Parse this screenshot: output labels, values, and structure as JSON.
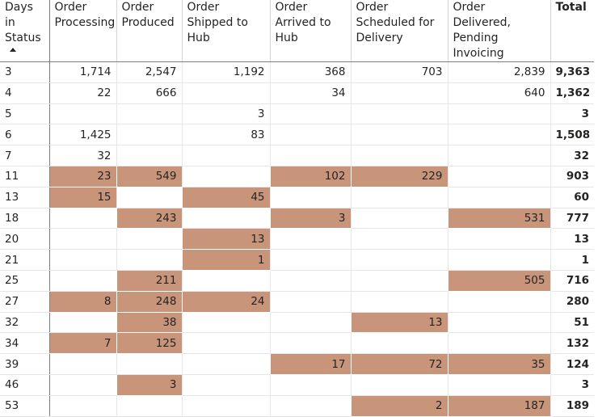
{
  "matrix": {
    "row_header_label": "Days in Status",
    "columns": [
      "Order Processing",
      "Order Produced",
      "Order Shipped to Hub",
      "Order Arrived to Hub",
      "Order Scheduled for Delivery",
      "Order Delivered, Pending Invoicing"
    ],
    "total_label": "Total",
    "highlight_color": "#c8957b",
    "rows": [
      {
        "days": "3",
        "values": [
          "1,714",
          "2,547",
          "1,192",
          "368",
          "703",
          "2,839"
        ],
        "total": "9,363",
        "highlight": [
          false,
          false,
          false,
          false,
          false,
          false
        ]
      },
      {
        "days": "4",
        "values": [
          "22",
          "666",
          "",
          "34",
          "",
          "640"
        ],
        "total": "1,362",
        "highlight": [
          false,
          false,
          false,
          false,
          false,
          false
        ]
      },
      {
        "days": "5",
        "values": [
          "",
          "",
          "3",
          "",
          "",
          ""
        ],
        "total": "3",
        "highlight": [
          false,
          false,
          false,
          false,
          false,
          false
        ]
      },
      {
        "days": "6",
        "values": [
          "1,425",
          "",
          "83",
          "",
          "",
          ""
        ],
        "total": "1,508",
        "highlight": [
          false,
          false,
          false,
          false,
          false,
          false
        ]
      },
      {
        "days": "7",
        "values": [
          "32",
          "",
          "",
          "",
          "",
          ""
        ],
        "total": "32",
        "highlight": [
          false,
          false,
          false,
          false,
          false,
          false
        ]
      },
      {
        "days": "11",
        "values": [
          "23",
          "549",
          "",
          "102",
          "229",
          ""
        ],
        "total": "903",
        "highlight": [
          true,
          true,
          false,
          true,
          true,
          false
        ]
      },
      {
        "days": "13",
        "values": [
          "15",
          "",
          "45",
          "",
          "",
          ""
        ],
        "total": "60",
        "highlight": [
          true,
          false,
          true,
          false,
          false,
          false
        ]
      },
      {
        "days": "18",
        "values": [
          "",
          "243",
          "",
          "3",
          "",
          "531"
        ],
        "total": "777",
        "highlight": [
          false,
          true,
          false,
          true,
          false,
          true
        ]
      },
      {
        "days": "20",
        "values": [
          "",
          "",
          "13",
          "",
          "",
          ""
        ],
        "total": "13",
        "highlight": [
          false,
          false,
          true,
          false,
          false,
          false
        ]
      },
      {
        "days": "21",
        "values": [
          "",
          "",
          "1",
          "",
          "",
          ""
        ],
        "total": "1",
        "highlight": [
          false,
          false,
          true,
          false,
          false,
          false
        ]
      },
      {
        "days": "25",
        "values": [
          "",
          "211",
          "",
          "",
          "",
          "505"
        ],
        "total": "716",
        "highlight": [
          false,
          true,
          false,
          false,
          false,
          true
        ]
      },
      {
        "days": "27",
        "values": [
          "8",
          "248",
          "24",
          "",
          "",
          ""
        ],
        "total": "280",
        "highlight": [
          true,
          true,
          true,
          false,
          false,
          false
        ]
      },
      {
        "days": "32",
        "values": [
          "",
          "38",
          "",
          "",
          "13",
          ""
        ],
        "total": "51",
        "highlight": [
          false,
          true,
          false,
          false,
          true,
          false
        ]
      },
      {
        "days": "34",
        "values": [
          "7",
          "125",
          "",
          "",
          "",
          ""
        ],
        "total": "132",
        "highlight": [
          true,
          true,
          false,
          false,
          false,
          false
        ]
      },
      {
        "days": "39",
        "values": [
          "",
          "",
          "",
          "17",
          "72",
          "35"
        ],
        "total": "124",
        "highlight": [
          false,
          false,
          false,
          true,
          true,
          true
        ]
      },
      {
        "days": "46",
        "values": [
          "",
          "3",
          "",
          "",
          "",
          ""
        ],
        "total": "3",
        "highlight": [
          false,
          true,
          false,
          false,
          false,
          false
        ]
      },
      {
        "days": "53",
        "values": [
          "",
          "",
          "",
          "",
          "2",
          "187"
        ],
        "total": "189",
        "highlight": [
          false,
          false,
          false,
          false,
          true,
          true
        ]
      }
    ]
  }
}
